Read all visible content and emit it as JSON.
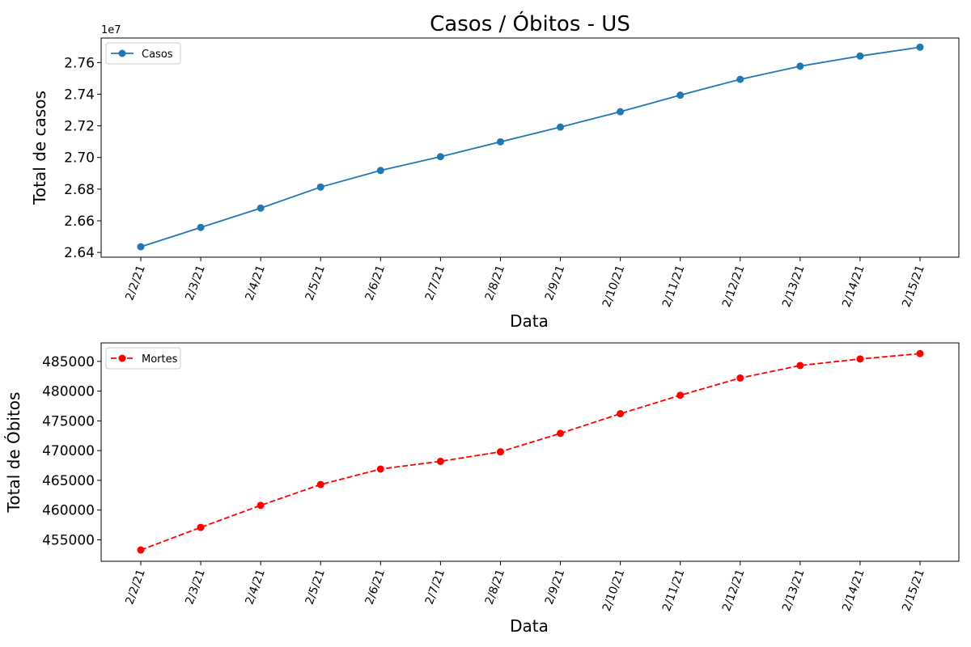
{
  "chart_data": [
    {
      "type": "line",
      "title": "Casos / Óbitos - US",
      "xlabel": "Data",
      "ylabel": "Total de casos",
      "offset_text": "1e7",
      "x": [
        "2/2/21",
        "2/3/21",
        "2/4/21",
        "2/5/21",
        "2/6/21",
        "2/7/21",
        "2/8/21",
        "2/9/21",
        "2/10/21",
        "2/11/21",
        "2/12/21",
        "2/13/21",
        "2/14/21",
        "2/15/21"
      ],
      "ylim": [
        2.637,
        2.7755
      ],
      "yticks": [
        2.64,
        2.66,
        2.68,
        2.7,
        2.72,
        2.74,
        2.76
      ],
      "ytick_labels": [
        "2.64",
        "2.66",
        "2.68",
        "2.70",
        "2.72",
        "2.74",
        "2.76"
      ],
      "series": [
        {
          "name": "Casos",
          "color": "#1f77b4",
          "linestyle": "solid",
          "marker": "circle",
          "values": [
            2.6436,
            2.6558,
            2.668,
            2.6813,
            2.6918,
            2.7005,
            2.7099,
            2.7192,
            2.7289,
            2.7394,
            2.7494,
            2.7577,
            2.7641,
            2.7697
          ]
        }
      ],
      "legend": "top-left",
      "grid": false
    },
    {
      "type": "line",
      "xlabel": "Data",
      "ylabel": "Total de Óbitos",
      "x": [
        "2/2/21",
        "2/3/21",
        "2/4/21",
        "2/5/21",
        "2/6/21",
        "2/7/21",
        "2/8/21",
        "2/9/21",
        "2/10/21",
        "2/11/21",
        "2/12/21",
        "2/13/21",
        "2/14/21",
        "2/15/21"
      ],
      "ylim": [
        451400,
        488100
      ],
      "yticks": [
        455000,
        460000,
        465000,
        470000,
        475000,
        480000,
        485000
      ],
      "ytick_labels": [
        "455000",
        "460000",
        "465000",
        "470000",
        "475000",
        "480000",
        "485000"
      ],
      "series": [
        {
          "name": "Mortes",
          "color": "#ff0000",
          "linestyle": "dashed",
          "marker": "circle",
          "values": [
            453300,
            457100,
            460800,
            464300,
            466900,
            468200,
            469800,
            472900,
            476200,
            479300,
            482200,
            484300,
            485400,
            486300
          ]
        }
      ],
      "legend": "top-left",
      "grid": false
    }
  ]
}
